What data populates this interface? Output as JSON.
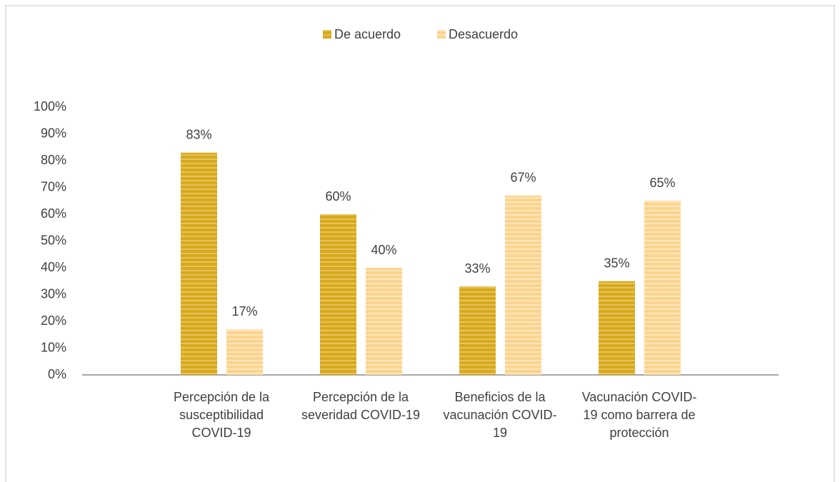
{
  "chart_data": {
    "type": "bar",
    "categories": [
      "Percepción de la susceptibilidad COVID-19",
      "Percepción de la severidad COVID-19",
      "Beneficios de la vacunación COVID-19",
      "Vacunación COVID-19 como barrera de protección"
    ],
    "series": [
      {
        "name": "De acuerdo",
        "color": "#d9a91a",
        "values": [
          83,
          60,
          33,
          35
        ],
        "value_labels": [
          "83%",
          "60%",
          "33%",
          "35%"
        ]
      },
      {
        "name": "Desacuerdo",
        "color": "#fdd38c",
        "values": [
          17,
          40,
          67,
          65
        ],
        "value_labels": [
          "17%",
          "40%",
          "67%",
          "65%"
        ]
      }
    ],
    "ylim": [
      0,
      100
    ],
    "yticks": [
      {
        "value": 0,
        "label": "0%"
      },
      {
        "value": 10,
        "label": "10%"
      },
      {
        "value": 20,
        "label": "20%"
      },
      {
        "value": 30,
        "label": "30%"
      },
      {
        "value": 40,
        "label": "40%"
      },
      {
        "value": 50,
        "label": "50%"
      },
      {
        "value": 60,
        "label": "60%"
      },
      {
        "value": 70,
        "label": "70%"
      },
      {
        "value": 80,
        "label": "80%"
      },
      {
        "value": 90,
        "label": "90%"
      },
      {
        "value": 100,
        "label": "100%"
      }
    ],
    "legend": "top",
    "grid": false
  }
}
